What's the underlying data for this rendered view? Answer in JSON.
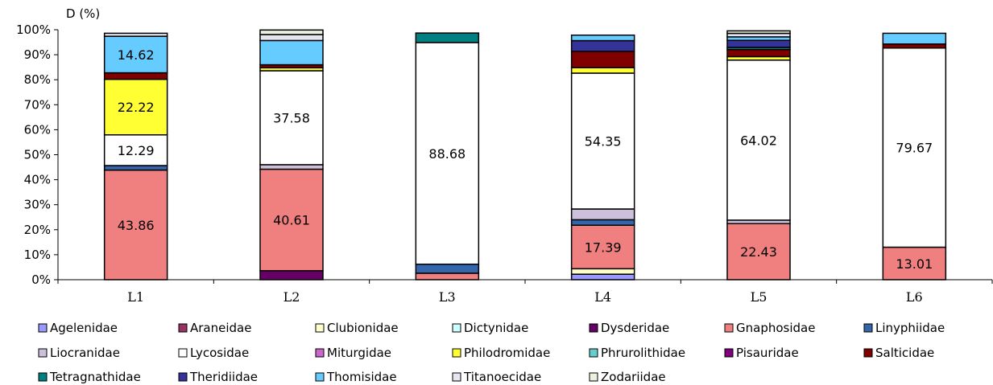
{
  "chart_data": {
    "type": "bar",
    "stacked": true,
    "ylabel": "D (%)",
    "ylim": [
      0,
      100
    ],
    "y_ticks": [
      "0%",
      "10%",
      "20%",
      "30%",
      "40%",
      "50%",
      "60%",
      "70%",
      "80%",
      "90%",
      "100%"
    ],
    "categories": [
      "L1",
      "L2",
      "L3",
      "L4",
      "L5",
      "L6"
    ],
    "grid": false,
    "legend_position": "bottom",
    "series": [
      {
        "name": "Agelenidae",
        "color": "#9999ff",
        "values": [
          0,
          0,
          0,
          2.2,
          0,
          0
        ]
      },
      {
        "name": "Araneidae",
        "color": "#993366",
        "values": [
          0,
          0,
          0,
          0,
          0,
          0
        ]
      },
      {
        "name": "Clubionidae",
        "color": "#ffffcc",
        "values": [
          0,
          0,
          0,
          2.2,
          0,
          0
        ]
      },
      {
        "name": "Dictynidae",
        "color": "#ccffff",
        "values": [
          0,
          0,
          0,
          0,
          0,
          0
        ]
      },
      {
        "name": "Dysderidae",
        "color": "#660066",
        "values": [
          0,
          3.6,
          0,
          0,
          0,
          0
        ]
      },
      {
        "name": "Gnaphosidae",
        "color": "#f08080",
        "values": [
          43.86,
          40.61,
          2.6,
          17.39,
          22.43,
          13.01
        ]
      },
      {
        "name": "Linyphiidae",
        "color": "#3366aa",
        "values": [
          1.8,
          0,
          3.6,
          2.2,
          0,
          0
        ]
      },
      {
        "name": "Liocranidae",
        "color": "#ccc0da",
        "values": [
          0,
          1.8,
          0,
          4.3,
          1.4,
          0
        ]
      },
      {
        "name": "Lycosidae",
        "color": "#ffffff",
        "values": [
          12.29,
          37.58,
          88.68,
          54.35,
          64.02,
          79.67
        ]
      },
      {
        "name": "Miturgidae",
        "color": "#cc66cc",
        "values": [
          0,
          0,
          0,
          0,
          0,
          0
        ]
      },
      {
        "name": "Philodromidae",
        "color": "#ffff33",
        "values": [
          22.22,
          1.2,
          0,
          2.2,
          1.4,
          0
        ]
      },
      {
        "name": "Phrurolithidae",
        "color": "#66cccc",
        "values": [
          0,
          0,
          0,
          0,
          0,
          0
        ]
      },
      {
        "name": "Pisauridae",
        "color": "#800080",
        "values": [
          0,
          0,
          0,
          0,
          0,
          0
        ]
      },
      {
        "name": "Salticidae",
        "color": "#800000",
        "values": [
          2.6,
          1.2,
          0,
          6.5,
          2.8,
          1.6
        ]
      },
      {
        "name": "Tetragnathidae",
        "color": "#008080",
        "values": [
          0,
          0,
          3.8,
          0,
          0.9,
          0
        ]
      },
      {
        "name": "Theridiidae",
        "color": "#333399",
        "values": [
          0,
          0,
          0,
          4.3,
          2.8,
          0
        ]
      },
      {
        "name": "Thomisidae",
        "color": "#66ccff",
        "values": [
          14.62,
          9.7,
          0,
          2.2,
          1.4,
          4.3
        ]
      },
      {
        "name": "Titanoecidae",
        "color": "#e6e6f0",
        "values": [
          1.2,
          2.4,
          0,
          0,
          1.4,
          0
        ]
      },
      {
        "name": "Zodariidae",
        "color": "#eaf1dd",
        "values": [
          0,
          1.8,
          0,
          0,
          1.0,
          0
        ]
      }
    ],
    "data_labels": [
      {
        "category": "L1",
        "series": "Gnaphosidae",
        "text": "43.86"
      },
      {
        "category": "L1",
        "series": "Lycosidae",
        "text": "12.29"
      },
      {
        "category": "L1",
        "series": "Philodromidae",
        "text": "22.22"
      },
      {
        "category": "L1",
        "series": "Thomisidae",
        "text": "14.62"
      },
      {
        "category": "L2",
        "series": "Gnaphosidae",
        "text": "40.61"
      },
      {
        "category": "L2",
        "series": "Lycosidae",
        "text": "37.58"
      },
      {
        "category": "L3",
        "series": "Lycosidae",
        "text": "88.68"
      },
      {
        "category": "L4",
        "series": "Gnaphosidae",
        "text": "17.39"
      },
      {
        "category": "L4",
        "series": "Lycosidae",
        "text": "54.35"
      },
      {
        "category": "L5",
        "series": "Gnaphosidae",
        "text": "22.43"
      },
      {
        "category": "L5",
        "series": "Lycosidae",
        "text": "64.02"
      },
      {
        "category": "L6",
        "series": "Gnaphosidae",
        "text": "13.01"
      },
      {
        "category": "L6",
        "series": "Lycosidae",
        "text": "79.67"
      }
    ]
  }
}
